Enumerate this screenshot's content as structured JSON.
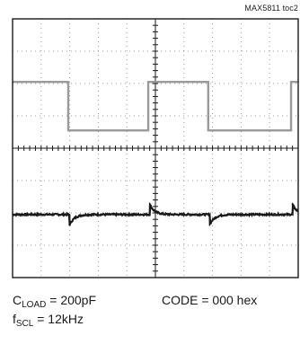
{
  "figure_ref": "MAX5811 toc2",
  "conditions": {
    "cload_label": "C",
    "cload_sub": "LOAD",
    "cload_value": " = 200pF",
    "fscl_label": "f",
    "fscl_sub": "SCL",
    "fscl_value": " = 12kHz",
    "code_text": "CODE = 000 hex"
  },
  "colors": {
    "grid_frame": "#1a1a1a",
    "gridline": "#9a9a9a",
    "clock_trace": "#9a9a9a",
    "output_trace": "#1a1a1a"
  },
  "chart_data": {
    "type": "line",
    "title": "",
    "xlabel": "",
    "ylabel": "",
    "x_divisions": 10,
    "y_divisions": 8,
    "grid": true,
    "series": [
      {
        "role": "scl-clock",
        "color": "#9a9a9a",
        "x": [
          0,
          1.95,
          1.95,
          4.75,
          4.75,
          6.85,
          6.85,
          9.75,
          9.75,
          10
        ],
        "y": [
          6.05,
          6.05,
          4.55,
          4.55,
          6.05,
          6.05,
          4.55,
          4.55,
          6.05,
          6.05
        ]
      },
      {
        "role": "dac-output",
        "color": "#1a1a1a",
        "baseline": 1.95,
        "glitch_x": [
          2.0,
          4.8,
          6.9,
          9.8
        ],
        "glitch_direction": [
          -1,
          1,
          -1,
          1
        ]
      }
    ]
  }
}
